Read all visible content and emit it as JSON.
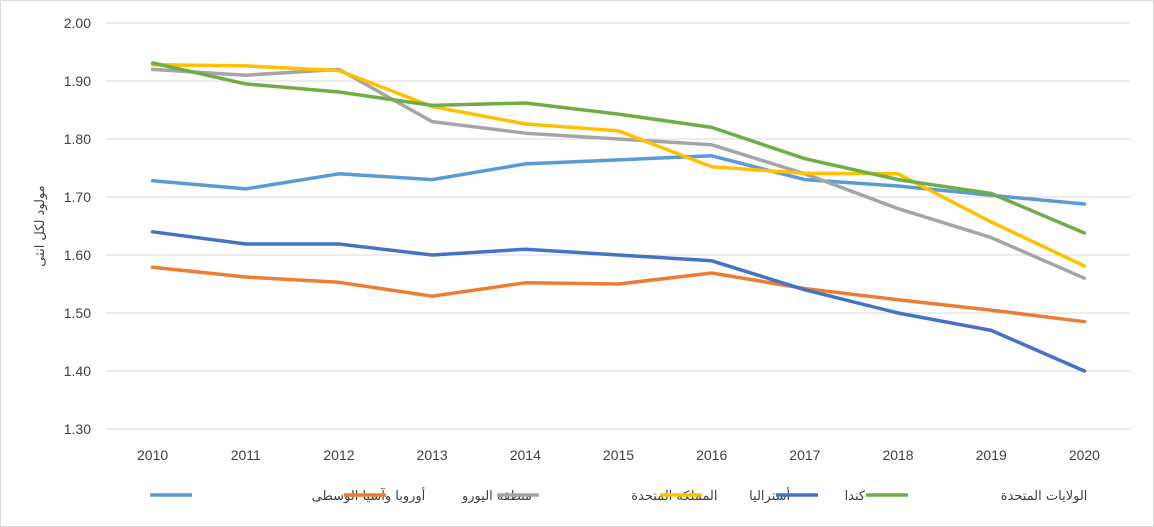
{
  "chart_data": {
    "type": "line",
    "title": "",
    "xlabel": "",
    "ylabel": "مولود لكل انثى",
    "x": [
      "2010",
      "2011",
      "2012",
      "2013",
      "2014",
      "2015",
      "2016",
      "2017",
      "2018",
      "2019",
      "2020"
    ],
    "ylim": [
      1.3,
      2.0
    ],
    "yticks": [
      "1.30",
      "1.40",
      "1.50",
      "1.60",
      "1.70",
      "1.80",
      "1.90",
      "2.00"
    ],
    "grid": true,
    "legend_position": "bottom",
    "series": [
      {
        "name": "أوروبا وآسيا الوسطى",
        "color": "#5b9bd5",
        "values": [
          1.728,
          1.714,
          1.74,
          1.73,
          1.757,
          1.764,
          1.771,
          1.73,
          1.719,
          1.703,
          1.688
        ]
      },
      {
        "name": "منطقة اليورو",
        "color": "#ed7d31",
        "values": [
          1.579,
          1.562,
          1.553,
          1.529,
          1.552,
          1.55,
          1.569,
          1.542,
          1.523,
          1.505,
          1.485
        ]
      },
      {
        "name": "المملكة المتحدة",
        "color": "#a5a5a5",
        "values": [
          1.92,
          1.91,
          1.92,
          1.83,
          1.81,
          1.8,
          1.79,
          1.74,
          1.68,
          1.63,
          1.56
        ]
      },
      {
        "name": "أستراليا",
        "color": "#ffc000",
        "values": [
          1.928,
          1.926,
          1.918,
          1.856,
          1.826,
          1.814,
          1.752,
          1.741,
          1.74,
          1.657,
          1.581
        ]
      },
      {
        "name": "كندا",
        "color": "#4472c4",
        "values": [
          1.64,
          1.619,
          1.619,
          1.6,
          1.61,
          1.6,
          1.59,
          1.54,
          1.5,
          1.47,
          1.4
        ]
      },
      {
        "name": "الولايات المتحدة",
        "color": "#70ad47",
        "values": [
          1.931,
          1.895,
          1.881,
          1.858,
          1.862,
          1.843,
          1.82,
          1.766,
          1.73,
          1.706,
          1.638
        ]
      }
    ]
  }
}
